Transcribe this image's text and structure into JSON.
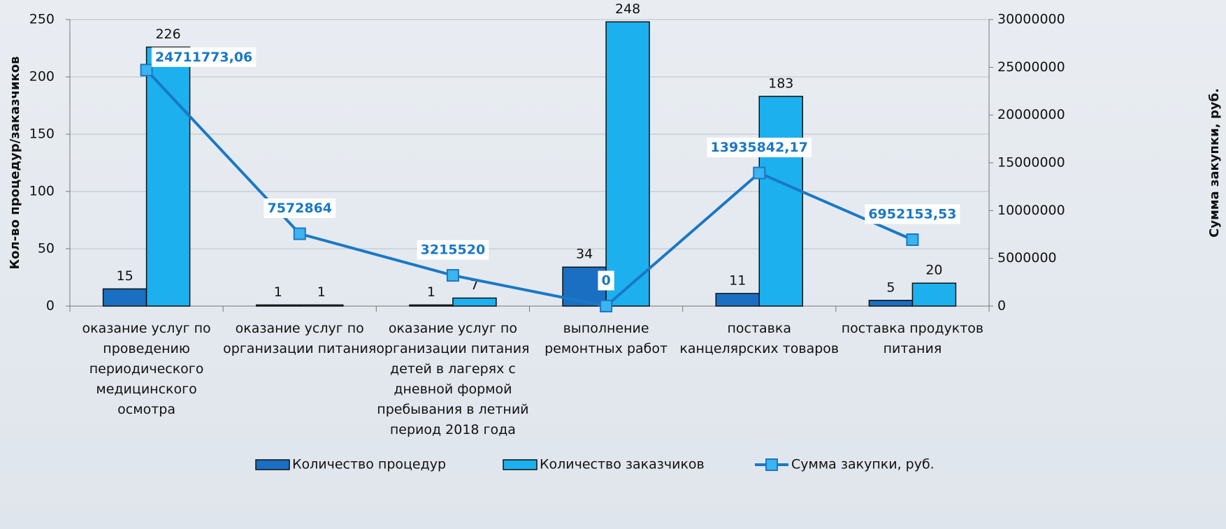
{
  "chart_data": {
    "type": "bar-line",
    "y_label": "Кол-во процедур/заказчиков",
    "y2_label": "Сумма закупки, руб.",
    "categories": [
      "оказание услуг по проведению периодического медицинского осмотра",
      "оказание услуг по организации питания",
      "оказание услуг по организации питания детей в лагерях с дневной формой пребывания в летний период 2018 года",
      "выполнение ремонтных работ",
      "поставка канцелярских товаров",
      "поставка продуктов питания"
    ],
    "series": [
      {
        "name": "Количество процедур",
        "type": "bar",
        "color": "#1a6fc2",
        "values": [
          15,
          1,
          1,
          34,
          11,
          5
        ]
      },
      {
        "name": "Количество заказчиков",
        "type": "bar",
        "color": "#1cb0ee",
        "values": [
          226,
          1,
          7,
          248,
          183,
          20
        ]
      },
      {
        "name": "Сумма закупки, руб.",
        "type": "line",
        "axis": "y2",
        "color": "#1a78c6",
        "marker_color": "#3cb4ef",
        "values": [
          24711773.06,
          7572864,
          3215520,
          0,
          13935842.17,
          6952153.53
        ],
        "value_labels": [
          "24711773,06",
          "7572864",
          "3215520",
          "0",
          "13935842,17",
          "6952153,53"
        ]
      }
    ],
    "ylim": [
      0,
      250
    ],
    "yticks": [
      0,
      50,
      100,
      150,
      200,
      250
    ],
    "y2lim": [
      0,
      30000000
    ],
    "y2ticks": [
      0,
      5000000,
      10000000,
      15000000,
      20000000,
      25000000,
      30000000
    ],
    "grid": true,
    "legend": "bottom"
  }
}
